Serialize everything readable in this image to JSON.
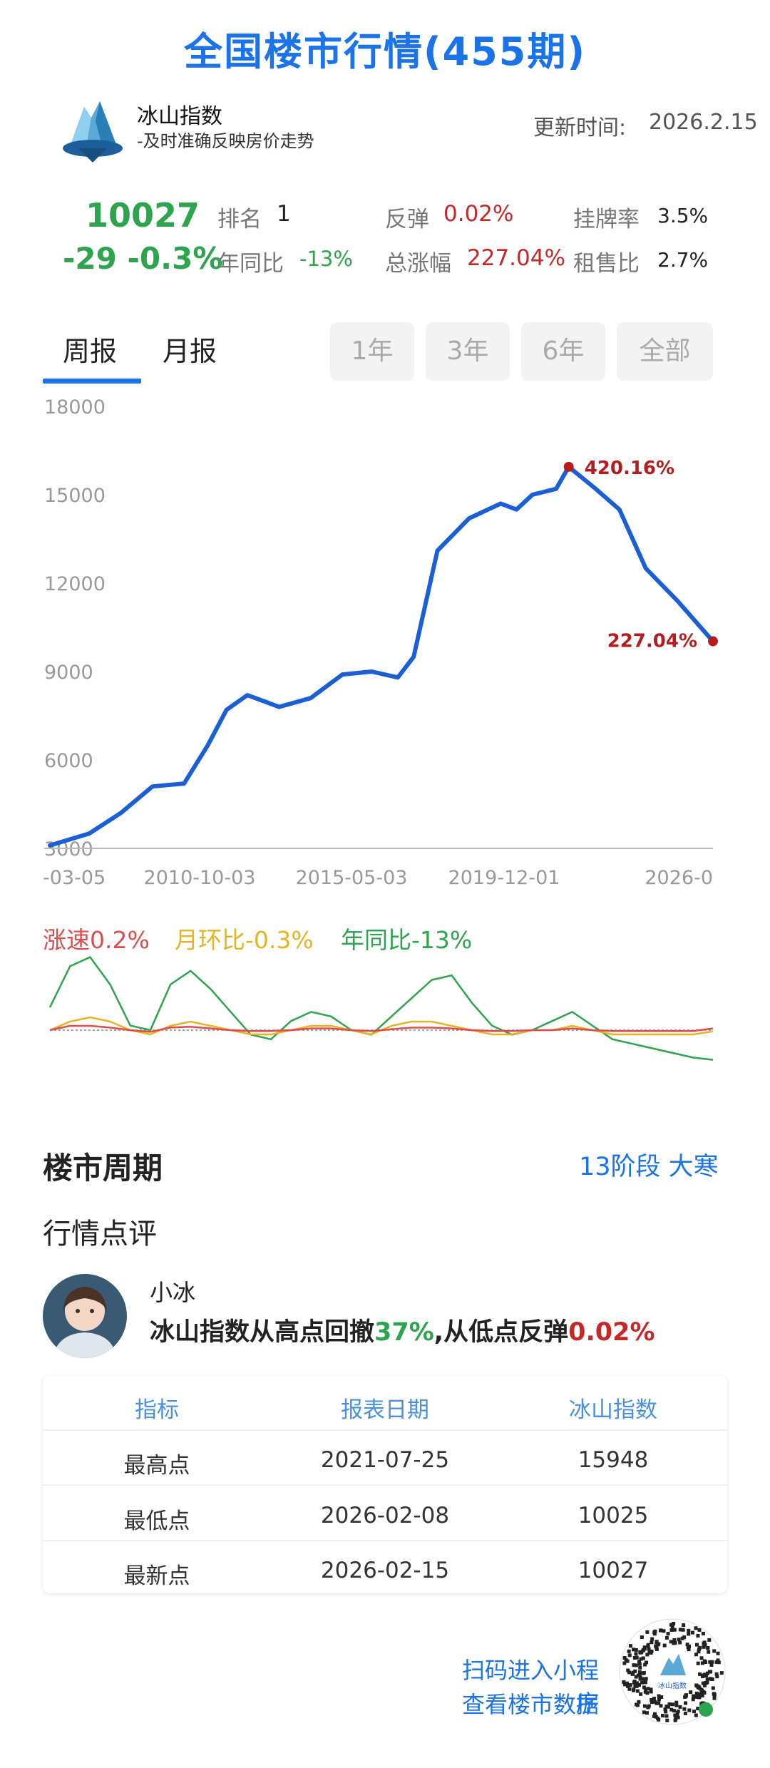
{
  "header": {
    "title": "全国楼市行情(455期)",
    "brand_name": "冰山指数",
    "brand_slogan": "-及时准确反映房价走势",
    "update_label": "更新时间:",
    "update_value": "2026.2.15"
  },
  "summary": {
    "index_value": "10027",
    "change": "-29 -0.3%",
    "rank_label": "排名",
    "rank_value": "1",
    "rebound_label": "反弹",
    "rebound_value": "0.02%",
    "listing_label": "挂牌率",
    "listing_value": "3.5%",
    "yoy_label": "年同比",
    "yoy_value": "-13%",
    "total_label": "总涨幅",
    "total_value": "227.04%",
    "rent_label": "租售比",
    "rent_value": "2.7%"
  },
  "tabs": {
    "weekly": "周报",
    "monthly": "月报",
    "range_1y": "1年",
    "range_3y": "3年",
    "range_6y": "6年",
    "range_all": "全部"
  },
  "colors": {
    "accent": "#1a73e8",
    "up": "#c62828",
    "down": "#2da44e",
    "mom": "#e6b422",
    "line": "#1a5fd6"
  },
  "chart_data": [
    {
      "type": "line",
      "x": [
        "2005-03-05",
        "2006-06",
        "2007-06",
        "2008-06",
        "2009-06",
        "2010-03",
        "2010-10-03",
        "2011-06",
        "2012-06",
        "2013-06",
        "2014-06",
        "2015-05-03",
        "2016-03",
        "2016-09",
        "2017-06",
        "2018-06",
        "2019-06",
        "2019-12-01",
        "2020-06",
        "2021-03",
        "2021-07-25",
        "2022-06",
        "2023-03",
        "2024-01",
        "2025-01",
        "2026-02-15"
      ],
      "series": [
        {
          "values": [
            3100,
            3500,
            4200,
            5100,
            5200,
            6500,
            7700,
            8200,
            7800,
            8100,
            8900,
            9000,
            8800,
            9500,
            13100,
            14200,
            14700,
            14500,
            15000,
            15200,
            15948,
            15200,
            14500,
            12500,
            11400,
            10027
          ]
        }
      ],
      "ylim": [
        3000,
        18000
      ],
      "yticks": [
        "18000",
        "15000",
        "12000",
        "9000",
        "6000",
        "3000"
      ],
      "xticks": [
        "-03-05",
        "2010-10-03",
        "2015-05-03",
        "2019-12-01",
        "2026-0"
      ],
      "annotations": [
        {
          "label": "420.16%",
          "x": "2021-07-25",
          "y": 15948
        },
        {
          "label": "227.04%",
          "x": "2026-02-15",
          "y": 10027
        }
      ],
      "grid": false
    },
    {
      "type": "line",
      "legend": [
        {
          "label": "涨速0.2%",
          "color": "#e04b4b"
        },
        {
          "label": "月环比-0.3%",
          "color": "#e6b422"
        },
        {
          "label": "年同比-13%",
          "color": "#2da44e"
        }
      ],
      "series": [
        {
          "name": "年同比",
          "values": [
            10,
            28,
            32,
            20,
            2,
            0,
            20,
            26,
            18,
            8,
            -2,
            -4,
            4,
            8,
            6,
            0,
            -2,
            6,
            14,
            22,
            24,
            12,
            2,
            -2,
            0,
            4,
            8,
            2,
            -4,
            -6,
            -8,
            -10,
            -12,
            -13
          ]
        },
        {
          "name": "月环比",
          "values": [
            0,
            2,
            3,
            2,
            0,
            -1,
            1,
            2,
            1,
            0,
            -1,
            -1,
            0,
            1,
            1,
            0,
            -1,
            1,
            2,
            2,
            1,
            0,
            -1,
            -1,
            0,
            0,
            1,
            0,
            -1,
            -1,
            -1,
            -1,
            -1,
            -0.3
          ]
        },
        {
          "name": "涨速",
          "values": [
            0,
            0.5,
            0.5,
            0.3,
            0,
            -0.2,
            0.3,
            0.4,
            0.2,
            0,
            -0.1,
            -0.1,
            0,
            0.2,
            0.2,
            0,
            -0.1,
            0.1,
            0.3,
            0.3,
            0.2,
            0,
            -0.1,
            -0.1,
            0,
            0,
            0.2,
            0,
            -0.1,
            -0.1,
            -0.1,
            -0.1,
            -0.1,
            0.2
          ]
        }
      ]
    }
  ],
  "cycle": {
    "title": "楼市周期",
    "stage": "13阶段 大寒"
  },
  "comment": {
    "title": "行情点评",
    "author": "小冰",
    "text_a": "冰山指数从高点回撤",
    "text_b": "37%",
    "text_c": ",从低点反弹",
    "text_d": "0.02%"
  },
  "table": {
    "headers": [
      "指标",
      "报表日期",
      "冰山指数"
    ],
    "rows": [
      [
        "最高点",
        "2021-07-25",
        "15948"
      ],
      [
        "最低点",
        "2026-02-08",
        "10025"
      ],
      [
        "最新点",
        "2026-02-15",
        "10027"
      ]
    ]
  },
  "footer": {
    "scan_line1": "扫码进入小程序",
    "scan_line2": "查看楼市数据",
    "qr_label": "冰山指数"
  }
}
